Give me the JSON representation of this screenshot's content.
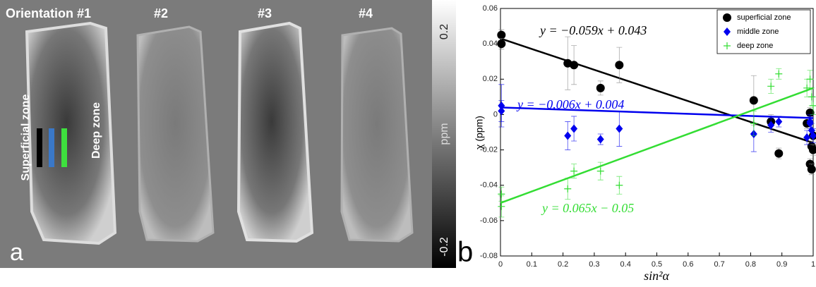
{
  "panel_a": {
    "label": "a",
    "headings": [
      "Orientation #1",
      "#2",
      "#3",
      "#4"
    ],
    "zone_labels": [
      "Superficial zone",
      "Deep zone"
    ],
    "colorbar": {
      "top": "0.2",
      "unit": "ppm",
      "bottom": "-0.2"
    }
  },
  "chart_data": {
    "type": "scatter",
    "panel_label": "b",
    "x_label": "sin²α",
    "y_label": "χ (ppm)",
    "xlim": [
      0,
      1
    ],
    "xticks": [
      0,
      0.1,
      0.2,
      0.3,
      0.4,
      0.5,
      0.6,
      0.7,
      0.8,
      0.9,
      1
    ],
    "ylim": [
      -0.08,
      0.06
    ],
    "yticks": [
      -0.08,
      -0.06,
      -0.04,
      -0.02,
      0,
      0.02,
      0.04,
      0.06
    ],
    "legend": "upper right",
    "series": [
      {
        "name": "superficial zone",
        "color": "#000000",
        "marker": "circle",
        "x": [
          0.003,
          0.003,
          0.215,
          0.235,
          0.32,
          0.38,
          0.81,
          0.865,
          0.89,
          0.98,
          0.99,
          0.995,
          1,
          0.99,
          0.995,
          1
        ],
        "values": [
          0.045,
          0.04,
          0.029,
          0.028,
          0.015,
          0.028,
          0.008,
          -0.004,
          -0.022,
          -0.005,
          0.001,
          -0.018,
          -0.02,
          -0.028,
          -0.031,
          -0.012
        ],
        "errors": [
          0.003,
          0.003,
          0.015,
          0.011,
          0.004,
          0.01,
          0.014,
          0.004,
          0.003,
          0.003,
          0.003,
          0.003,
          0.003,
          0.003,
          0.003,
          0.003
        ],
        "fit": {
          "slope": -0.059,
          "intercept": 0.043,
          "label": "y = −0.059x + 0.043"
        }
      },
      {
        "name": "middle zone",
        "color": "#0000ee",
        "marker": "diamond",
        "x": [
          0.003,
          0.003,
          0.215,
          0.235,
          0.32,
          0.38,
          0.81,
          0.865,
          0.89,
          0.98,
          0.99,
          0.995,
          1,
          0.99
        ],
        "values": [
          0.005,
          0.002,
          -0.012,
          -0.008,
          -0.014,
          -0.008,
          -0.011,
          -0.006,
          -0.004,
          -0.013,
          -0.005,
          -0.009,
          -0.012,
          -0.004
        ],
        "errors": [
          0.012,
          0.006,
          0.008,
          0.007,
          0.003,
          0.01,
          0.01,
          0.004,
          0.003,
          0.004,
          0.004,
          0.004,
          0.004,
          0.004
        ],
        "fit": {
          "slope": -0.006,
          "intercept": 0.004,
          "label": "y = −0.006x + 0.004"
        }
      },
      {
        "name": "deep zone",
        "color": "#33dd33",
        "marker": "plus",
        "x": [
          0.003,
          0.003,
          0.215,
          0.235,
          0.32,
          0.38,
          0.81,
          0.865,
          0.89,
          0.98,
          0.99,
          0.995,
          1
        ],
        "values": [
          -0.052,
          -0.045,
          -0.042,
          -0.032,
          -0.032,
          -0.04,
          -0.005,
          0.016,
          0.023,
          0.015,
          0.02,
          0.01,
          0.005
        ],
        "errors": [
          0.006,
          0.004,
          0.006,
          0.004,
          0.005,
          0.005,
          0.007,
          0.004,
          0.003,
          0.005,
          0.005,
          0.005,
          0.005
        ],
        "fit": {
          "slope": 0.065,
          "intercept": -0.05,
          "label": "y = 0.065x − 0.05"
        }
      }
    ]
  }
}
